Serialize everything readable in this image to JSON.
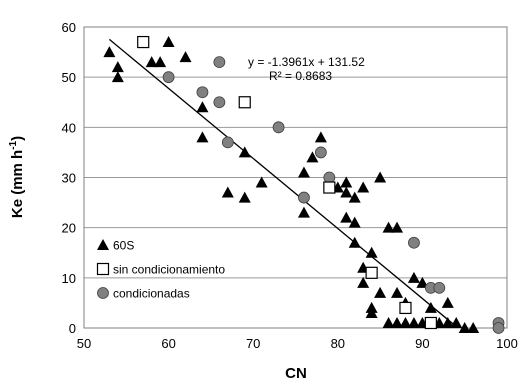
{
  "chart_data": {
    "type": "scatter",
    "xlabel": "CN",
    "ylabel": "Ke (mm h",
    "ylabel_sup": "-1",
    "ylabel_end": ")",
    "xlim": [
      50,
      100
    ],
    "ylim": [
      0,
      60
    ],
    "xticks": [
      "50",
      "60",
      "70",
      "80",
      "90",
      "100"
    ],
    "yticks": [
      "0",
      "10",
      "20",
      "30",
      "40",
      "50",
      "60"
    ],
    "grid": "horizontal",
    "legend_position": "bottom-left",
    "colors": {
      "triangle": "#000000",
      "circle": "#808080",
      "line": "#000000"
    },
    "trendline": {
      "slope": -1.3961,
      "intercept": 131.52,
      "x_range": [
        53,
        94
      ],
      "equation": "y = -1.3961x + 131.52",
      "r2": "R² = 0.8683"
    },
    "series": [
      {
        "name": "60S",
        "marker": "triangle",
        "points": [
          [
            53,
            55
          ],
          [
            54,
            52
          ],
          [
            54,
            50
          ],
          [
            58,
            53
          ],
          [
            59,
            53
          ],
          [
            60,
            57
          ],
          [
            62,
            54
          ],
          [
            64,
            44
          ],
          [
            64,
            38
          ],
          [
            67,
            27
          ],
          [
            69,
            26
          ],
          [
            69,
            35
          ],
          [
            71,
            29
          ],
          [
            76,
            31
          ],
          [
            76,
            23
          ],
          [
            77,
            34
          ],
          [
            78,
            38
          ],
          [
            79,
            29
          ],
          [
            80,
            28
          ],
          [
            81,
            29
          ],
          [
            81,
            27
          ],
          [
            81,
            22
          ],
          [
            82,
            26
          ],
          [
            82,
            21
          ],
          [
            82,
            17
          ],
          [
            83,
            28
          ],
          [
            83,
            12
          ],
          [
            83,
            9
          ],
          [
            84,
            15
          ],
          [
            84,
            4
          ],
          [
            84,
            3
          ],
          [
            85,
            30
          ],
          [
            85,
            7
          ],
          [
            86,
            20
          ],
          [
            86,
            1
          ],
          [
            87,
            20
          ],
          [
            87,
            7
          ],
          [
            87,
            1
          ],
          [
            88,
            5
          ],
          [
            88,
            1
          ],
          [
            89,
            10
          ],
          [
            89,
            1
          ],
          [
            90,
            9
          ],
          [
            90,
            1
          ],
          [
            91,
            4
          ],
          [
            92,
            1
          ],
          [
            93,
            5
          ],
          [
            93,
            1
          ],
          [
            94,
            1
          ],
          [
            95,
            0
          ],
          [
            96,
            0
          ]
        ]
      },
      {
        "name": "sin condicionamiento",
        "marker": "square",
        "points": [
          [
            57,
            57
          ],
          [
            69,
            45
          ],
          [
            79,
            28
          ],
          [
            84,
            11
          ],
          [
            88,
            4
          ],
          [
            91,
            1
          ]
        ]
      },
      {
        "name": "condicionadas",
        "marker": "circle",
        "points": [
          [
            60,
            50
          ],
          [
            64,
            47
          ],
          [
            66,
            53
          ],
          [
            66,
            45
          ],
          [
            67,
            37
          ],
          [
            73,
            40
          ],
          [
            76,
            26
          ],
          [
            78,
            35
          ],
          [
            79,
            30
          ],
          [
            89,
            17
          ],
          [
            91,
            8
          ],
          [
            92,
            8
          ],
          [
            99,
            1
          ],
          [
            99,
            0
          ]
        ]
      }
    ]
  }
}
